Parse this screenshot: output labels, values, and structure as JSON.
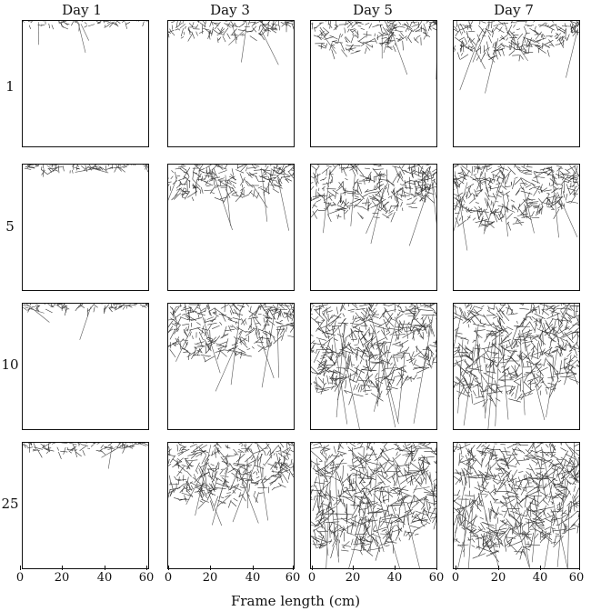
{
  "columns": [
    "Day 1",
    "Day 3",
    "Day 5",
    "Day 7"
  ],
  "rows": [
    "1",
    "5",
    "10",
    "25"
  ],
  "axis": {
    "title": "Frame length (cm)",
    "ticks": [
      "0",
      "20",
      "40",
      "60"
    ]
  },
  "panels": [
    {
      "row": "1",
      "day": "Day 1",
      "web_coverage": 0.02
    },
    {
      "row": "1",
      "day": "Day 3",
      "web_coverage": 0.15
    },
    {
      "row": "1",
      "day": "Day 5",
      "web_coverage": 0.25
    },
    {
      "row": "1",
      "day": "Day 7",
      "web_coverage": 0.3
    },
    {
      "row": "5",
      "day": "Day 1",
      "web_coverage": 0.05
    },
    {
      "row": "5",
      "day": "Day 3",
      "web_coverage": 0.3
    },
    {
      "row": "5",
      "day": "Day 5",
      "web_coverage": 0.45
    },
    {
      "row": "5",
      "day": "Day 7",
      "web_coverage": 0.5
    },
    {
      "row": "10",
      "day": "Day 1",
      "web_coverage": 0.05
    },
    {
      "row": "10",
      "day": "Day 3",
      "web_coverage": 0.45
    },
    {
      "row": "10",
      "day": "Day 5",
      "web_coverage": 0.75
    },
    {
      "row": "10",
      "day": "Day 7",
      "web_coverage": 0.8
    },
    {
      "row": "25",
      "day": "Day 1",
      "web_coverage": 0.08
    },
    {
      "row": "25",
      "day": "Day 3",
      "web_coverage": 0.5
    },
    {
      "row": "25",
      "day": "Day 5",
      "web_coverage": 0.9
    },
    {
      "row": "25",
      "day": "Day 7",
      "web_coverage": 0.92
    }
  ]
}
